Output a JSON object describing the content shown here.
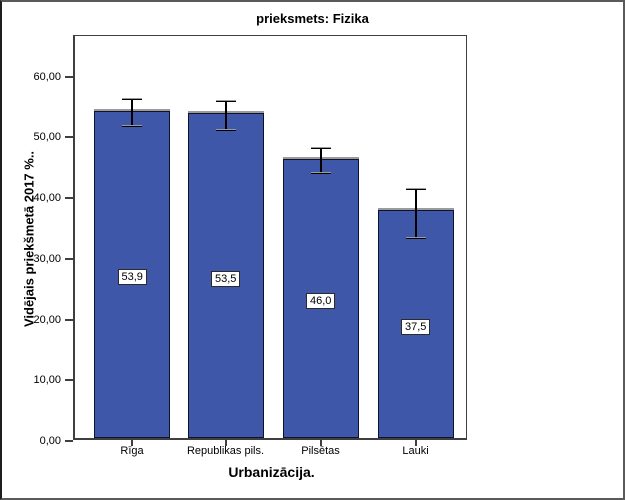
{
  "chart_data": {
    "type": "bar",
    "title": "prieksmets: Fizika",
    "xlabel": "Urbanizācija.",
    "ylabel": "Vidējais priekšmetā 2017 %..",
    "categories": [
      "Rīga",
      "Republikas pils.",
      "Pilsētas",
      "Lauki"
    ],
    "values": [
      53.9,
      53.5,
      46.0,
      37.5
    ],
    "value_labels": [
      "53,9",
      "53,5",
      "46,0",
      "37,5"
    ],
    "error_bars": {
      "upper": [
        56.3,
        56.0,
        48.3,
        41.5
      ],
      "lower": [
        51.8,
        51.2,
        44.1,
        33.4
      ]
    },
    "yticks": [
      0,
      10,
      20,
      30,
      40,
      50,
      60
    ],
    "ytick_labels": [
      "0,00",
      "10,00",
      "20,00",
      "30,00",
      "40,00",
      "50,00",
      "60,00"
    ],
    "ylim": [
      0,
      66.7
    ],
    "grid": false,
    "legend": null,
    "colors": {
      "bar_fill": "#3E57A8",
      "bar_border": "#10122B",
      "error_bar": "#000000",
      "label_box_bg": "#FFFFFF",
      "label_box_border": "#2B2B2B",
      "frame": "#3F3F3F"
    }
  }
}
